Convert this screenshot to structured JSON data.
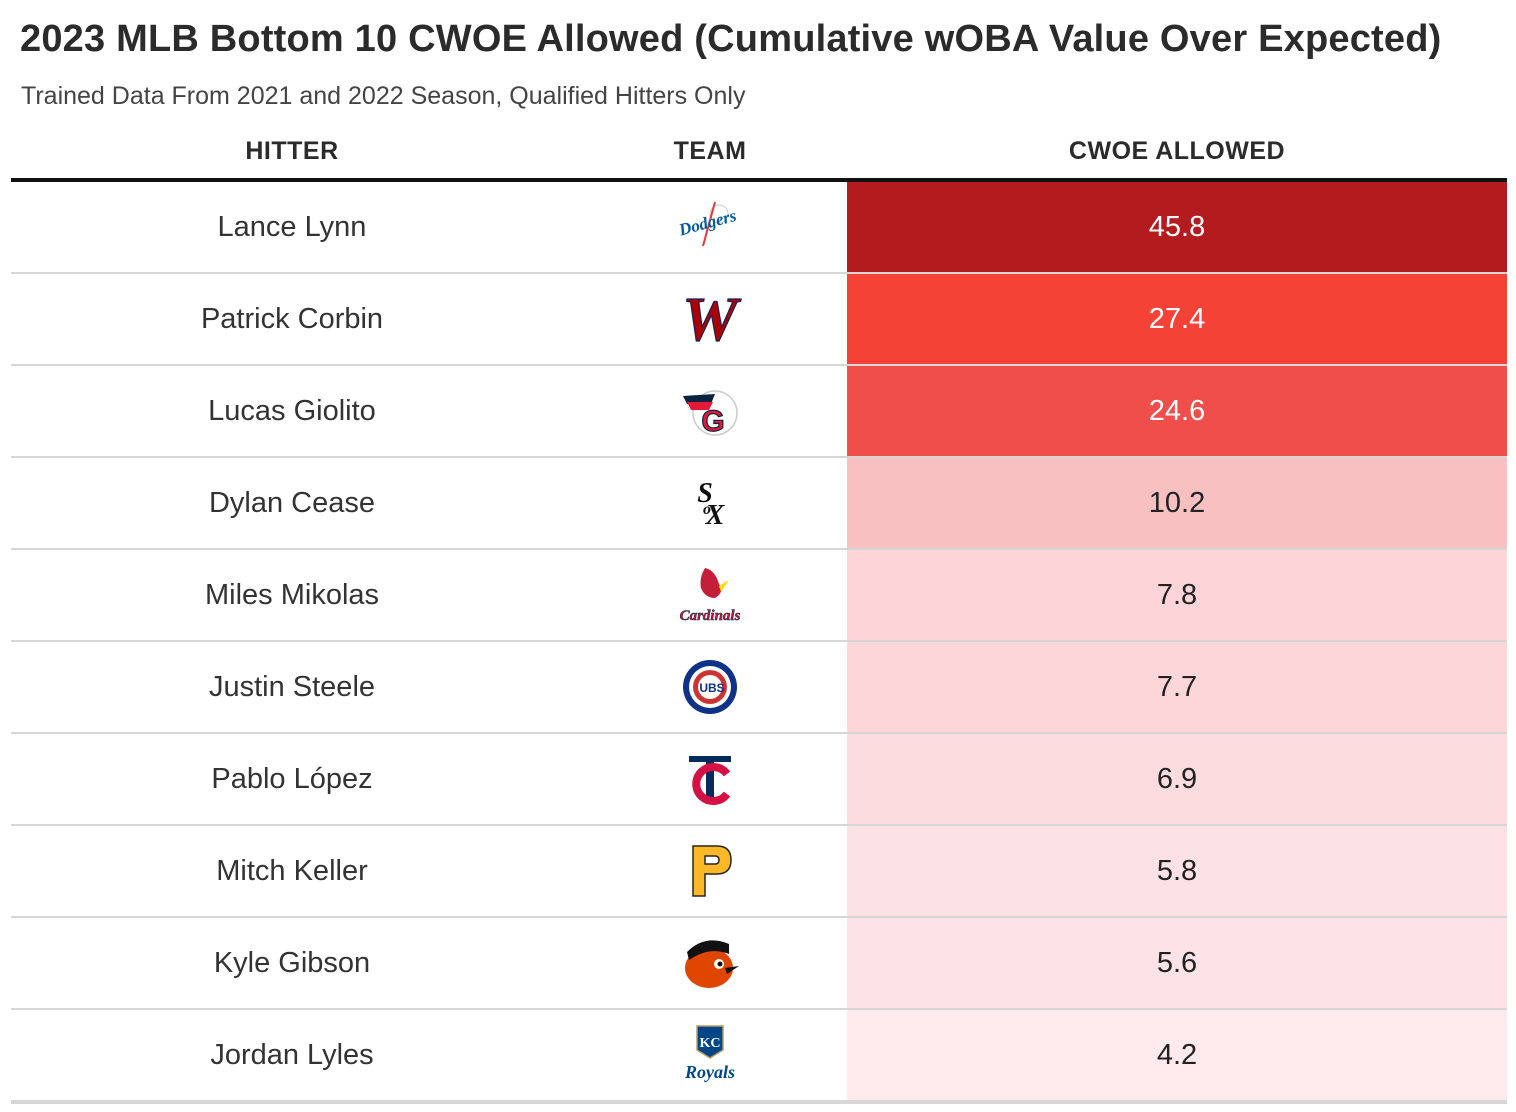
{
  "title": "2023 MLB Bottom 10 CWOE Allowed (Cumulative wOBA Value Over Expected)",
  "subtitle": "Trained Data From 2021 and 2022 Season, Qualified Hitters Only",
  "chart_data": {
    "type": "table",
    "columns": [
      "HITTER",
      "TEAM",
      "CWOE ALLOWED"
    ],
    "rows": [
      {
        "hitter": "Lance Lynn",
        "team": "Dodgers",
        "logo": "dodgers-logo-icon",
        "value": "45.8",
        "bg": "#b31b1e",
        "fg": "#ffffff"
      },
      {
        "hitter": "Patrick Corbin",
        "team": "Nationals",
        "logo": "nationals-logo-icon",
        "value": "27.4",
        "bg": "#f44336",
        "fg": "#ffffff"
      },
      {
        "hitter": "Lucas Giolito",
        "team": "Guardians",
        "logo": "guardians-logo-icon",
        "value": "24.6",
        "bg": "#ef4e4a",
        "fg": "#ffffff"
      },
      {
        "hitter": "Dylan Cease",
        "team": "White Sox",
        "logo": "white-sox-logo-icon",
        "value": "10.2",
        "bg": "#f9c0c2",
        "fg": "#222222"
      },
      {
        "hitter": "Miles Mikolas",
        "team": "Cardinals",
        "logo": "cardinals-logo-icon",
        "value": "7.8",
        "bg": "#fdd5d9",
        "fg": "#222222"
      },
      {
        "hitter": "Justin Steele",
        "team": "Cubs",
        "logo": "cubs-logo-icon",
        "value": "7.7",
        "bg": "#fdd6da",
        "fg": "#222222"
      },
      {
        "hitter": "Pablo López",
        "team": "Twins",
        "logo": "twins-logo-icon",
        "value": "6.9",
        "bg": "#fddcdf",
        "fg": "#222222"
      },
      {
        "hitter": "Mitch Keller",
        "team": "Pirates",
        "logo": "pirates-logo-icon",
        "value": "5.8",
        "bg": "#fde2e5",
        "fg": "#222222"
      },
      {
        "hitter": "Kyle Gibson",
        "team": "Orioles",
        "logo": "orioles-logo-icon",
        "value": "5.6",
        "bg": "#fde3e6",
        "fg": "#222222"
      },
      {
        "hitter": "Jordan Lyles",
        "team": "Royals",
        "logo": "royals-logo-icon",
        "value": "4.2",
        "bg": "#feeaec",
        "fg": "#222222"
      }
    ]
  }
}
